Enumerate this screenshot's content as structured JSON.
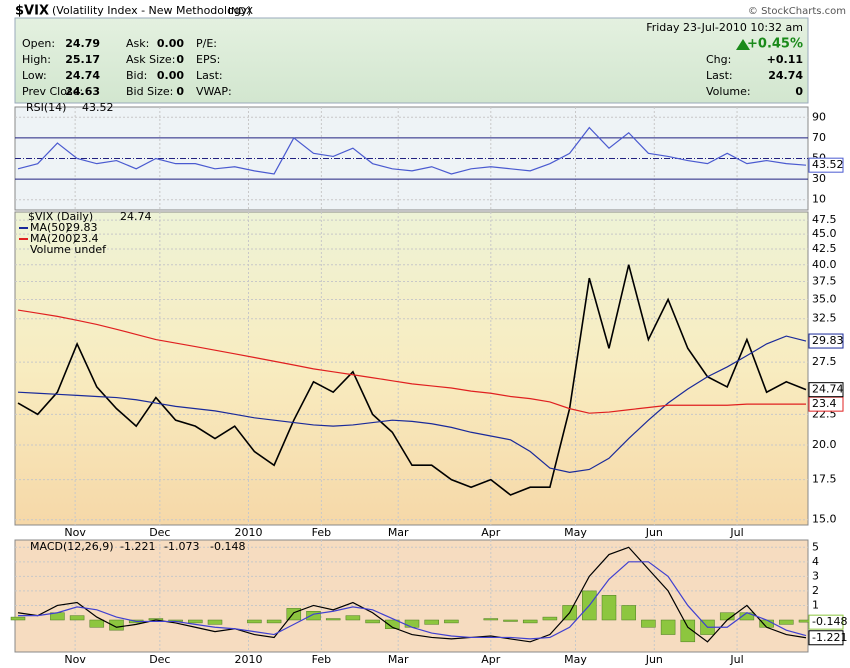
{
  "header": {
    "symbol": "$VIX",
    "name": "(Volatility Index - New Methodology)",
    "exchange": "INDX",
    "copyright": "© StockCharts.com",
    "timestamp": "Friday  23-Jul-2010  10:32 am",
    "columns": [
      [
        [
          "Open:",
          "24.79"
        ],
        [
          "High:",
          "25.17"
        ],
        [
          "Low:",
          "24.74"
        ],
        [
          "Prev Close:",
          "24.63"
        ]
      ],
      [
        [
          "Ask:",
          "0.00"
        ],
        [
          "Ask Size:",
          "0"
        ],
        [
          "Bid:",
          "0.00"
        ],
        [
          "Bid Size:",
          "0"
        ]
      ],
      [
        [
          "P/E:"
        ],
        [
          "EPS:"
        ],
        [
          "Last:"
        ],
        [
          "VWAP:"
        ]
      ]
    ],
    "change_pct": "+0.45%",
    "right": [
      [
        "Chg:",
        "+0.11"
      ],
      [
        "Last:",
        "24.74"
      ],
      [
        "Volume:",
        "0"
      ]
    ]
  },
  "chart_data": [
    {
      "type": "line",
      "title": "RSI(14)",
      "xlim": [
        0,
        40
      ],
      "ylim": [
        0,
        100
      ],
      "yticks": [
        10,
        30,
        50,
        70,
        90
      ],
      "bands": [
        30,
        70
      ],
      "midline": 50,
      "series": [
        {
          "name": "RSI(14)",
          "color": "#4a5ad0",
          "values": [
            40,
            45,
            65,
            50,
            45,
            48,
            40,
            50,
            45,
            45,
            40,
            42,
            38,
            35,
            70,
            55,
            52,
            60,
            45,
            40,
            38,
            42,
            35,
            40,
            42,
            40,
            38,
            45,
            55,
            80,
            60,
            75,
            55,
            52,
            48,
            45,
            55,
            45,
            48,
            45,
            43.52
          ]
        }
      ]
    },
    {
      "type": "line",
      "title": "$VIX (Daily)",
      "log_scale": true,
      "grid": true,
      "xlim": [
        0,
        40
      ],
      "ylim": [
        14.7,
        49
      ],
      "yticks": [
        {
          "value": 15,
          "label": "15.0"
        },
        {
          "value": 17.5,
          "label": "17.5"
        },
        {
          "value": 20,
          "label": "20.0"
        },
        {
          "value": 22.5,
          "label": "22.5"
        },
        {
          "value": 27.5,
          "label": "27.5"
        },
        {
          "value": 32.5,
          "label": "32.5"
        },
        {
          "value": 35,
          "label": "35.0"
        },
        {
          "value": 37.5,
          "label": "37.5"
        },
        {
          "value": 40,
          "label": "40.0"
        },
        {
          "value": 42.5,
          "label": "42.5"
        },
        {
          "value": 45,
          "label": "45.0"
        },
        {
          "value": 47.5,
          "label": "47.5"
        }
      ],
      "xticks": [
        {
          "value": 2.9,
          "label": "Nov"
        },
        {
          "value": 7.2,
          "label": "Dec"
        },
        {
          "value": 11.7,
          "label": "2010"
        },
        {
          "value": 15.4,
          "label": "Feb"
        },
        {
          "value": 19.3,
          "label": "Mar"
        },
        {
          "value": 24,
          "label": "Apr"
        },
        {
          "value": 28.3,
          "label": "May"
        },
        {
          "value": 32.3,
          "label": "Jun"
        },
        {
          "value": 36.5,
          "label": "Jul"
        }
      ],
      "volume_label": "Volume undef",
      "series": [
        {
          "name": "$VIX (Daily)",
          "color": "#000000",
          "values": [
            23.5,
            22.5,
            24.5,
            29.5,
            25,
            23,
            21.5,
            24,
            22,
            21.5,
            20.5,
            21.5,
            19.5,
            18.5,
            22,
            25.5,
            24.5,
            26.5,
            22.5,
            21,
            18.5,
            18.5,
            17.5,
            17,
            17.5,
            16.5,
            17,
            17,
            23,
            38,
            29,
            40,
            30,
            35,
            29,
            26,
            25,
            30,
            24.5,
            25.5,
            24.74
          ]
        },
        {
          "name": "MA(50)",
          "color": "#1a2a9a",
          "values": [
            24.5,
            24.4,
            24.3,
            24.2,
            24.1,
            24,
            23.8,
            23.5,
            23.2,
            23,
            22.8,
            22.5,
            22.2,
            22,
            21.8,
            21.6,
            21.5,
            21.6,
            21.8,
            22,
            21.9,
            21.7,
            21.4,
            21,
            20.7,
            20.4,
            19.5,
            18.3,
            18,
            18.2,
            19,
            20.5,
            22,
            23.5,
            24.8,
            26,
            27,
            28.2,
            29.5,
            30.4,
            29.83
          ]
        },
        {
          "name": "MA(200)",
          "color": "#e02020",
          "values": [
            33.6,
            33.2,
            32.8,
            32.3,
            31.8,
            31.2,
            30.6,
            30,
            29.6,
            29.2,
            28.8,
            28.4,
            28,
            27.6,
            27.2,
            26.8,
            26.5,
            26.2,
            25.9,
            25.6,
            25.3,
            25.1,
            24.9,
            24.6,
            24.4,
            24.1,
            23.9,
            23.6,
            23,
            22.6,
            22.7,
            22.9,
            23.1,
            23.3,
            23.3,
            23.3,
            23.3,
            23.4,
            23.4,
            23.4,
            23.4
          ]
        }
      ]
    },
    {
      "type": "macd",
      "title": "MACD(12,26,9)",
      "xlim": [
        0,
        40
      ],
      "ylim": [
        -2.2,
        5.5
      ],
      "yticks": [
        1,
        2,
        3,
        4,
        5
      ],
      "series": [
        {
          "kind": "bar",
          "color": "#8dc63f",
          "values": [
            0.2,
            0,
            0.5,
            0.3,
            -0.5,
            -0.7,
            -0.2,
            0.1,
            -0.1,
            -0.2,
            -0.3,
            0,
            -0.2,
            -0.2,
            0.8,
            0.6,
            0.1,
            0.3,
            -0.2,
            -0.6,
            -0.5,
            -0.3,
            -0.2,
            0,
            0.1,
            -0.1,
            -0.2,
            0.2,
            1,
            2,
            1.7,
            1,
            -0.5,
            -1,
            -1.5,
            -1,
            0.5,
            0.5,
            -0.5,
            -0.3,
            -0.148
          ]
        },
        {
          "kind": "line",
          "color": "#000000",
          "values": [
            0.5,
            0.3,
            1,
            1.2,
            0.2,
            -0.5,
            -0.3,
            0,
            -0.2,
            -0.5,
            -0.8,
            -0.6,
            -1,
            -1.2,
            0.5,
            1,
            0.7,
            1.2,
            0.5,
            -0.5,
            -1,
            -1.2,
            -1.3,
            -1.2,
            -1.1,
            -1.3,
            -1.5,
            -1,
            0.5,
            3,
            4.5,
            5,
            3.5,
            2,
            -0.5,
            -1.5,
            0,
            1,
            -0.5,
            -1,
            -1.221
          ]
        },
        {
          "kind": "line",
          "color": "#4040d0",
          "values": [
            0.3,
            0.3,
            0.5,
            0.9,
            0.7,
            0.2,
            -0.1,
            -0.1,
            -0.1,
            -0.3,
            -0.5,
            -0.6,
            -0.8,
            -1,
            -0.3,
            0.4,
            0.6,
            0.9,
            0.7,
            0.1,
            -0.5,
            -0.9,
            -1.1,
            -1.2,
            -1.2,
            -1.2,
            -1.3,
            -1.2,
            -0.5,
            1,
            2.8,
            4,
            4,
            3,
            1,
            -0.5,
            -0.5,
            0.5,
            0,
            -0.7,
            -1.073
          ]
        }
      ]
    }
  ]
}
